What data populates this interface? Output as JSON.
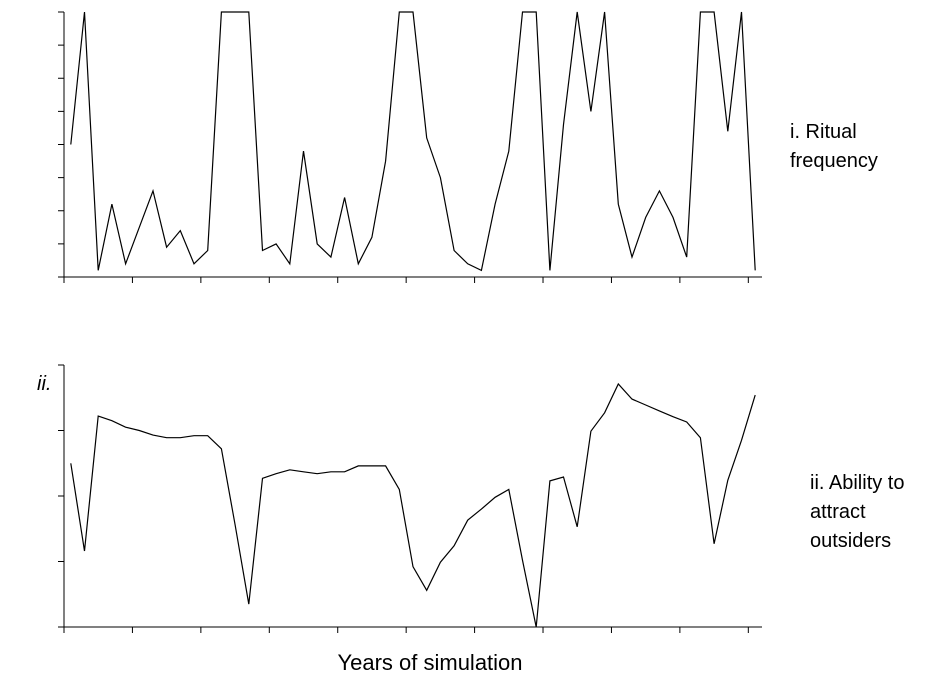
{
  "chart_data": [
    {
      "type": "line",
      "title": "i. Ritual frequency",
      "xlim": [
        0,
        51
      ],
      "xticks": [
        0,
        5,
        10,
        15,
        20,
        25,
        30,
        35,
        40,
        45,
        50
      ],
      "ylim": [
        0,
        8
      ],
      "yticks": [
        0,
        1,
        2,
        3,
        4,
        5,
        6,
        7,
        8
      ],
      "x": [
        0.5,
        1.5,
        2.5,
        3.5,
        4.5,
        5.5,
        6.5,
        7.5,
        8.5,
        9.5,
        10.5,
        11.5,
        12.5,
        13.5,
        14.5,
        15.5,
        16.5,
        17.5,
        18.5,
        19.5,
        20.5,
        21.5,
        22.5,
        23.5,
        24.5,
        25.5,
        26.5,
        27.5,
        28.5,
        29.5,
        30.5,
        31.5,
        32.5,
        33.5,
        34.5,
        35.5,
        36.5,
        37.5,
        38.5,
        39.5,
        40.5,
        41.5,
        42.5,
        43.5,
        44.5,
        45.5,
        46.5,
        47.5,
        48.5,
        49.5,
        50.5
      ],
      "series": [
        {
          "color": "#000000",
          "values": [
            4.0,
            8.0,
            0.2,
            2.2,
            0.4,
            1.5,
            2.6,
            0.9,
            1.4,
            0.4,
            0.8,
            8.0,
            8.0,
            8.0,
            0.8,
            1.0,
            0.4,
            3.8,
            1.0,
            0.6,
            2.4,
            0.4,
            1.2,
            3.5,
            8.0,
            8.0,
            4.2,
            3.0,
            0.8,
            0.4,
            0.2,
            2.2,
            3.8,
            8.0,
            8.0,
            0.2,
            4.6,
            8.0,
            5.0,
            8.0,
            2.2,
            0.6,
            1.8,
            2.6,
            1.8,
            0.6,
            8.0,
            8.0,
            4.4,
            8.0,
            0.2
          ]
        }
      ]
    },
    {
      "type": "line",
      "title": "ii. Ability to attract outsiders",
      "annotation": "ii.",
      "x_label": "Years of simulation",
      "xlim": [
        0,
        51
      ],
      "xticks": [
        0,
        5,
        10,
        15,
        20,
        25,
        30,
        35,
        40,
        45,
        50
      ],
      "ylim": [
        0,
        4
      ],
      "yticks": [
        0,
        1,
        2,
        3,
        4
      ],
      "x": [
        0.5,
        1.5,
        2.5,
        3.5,
        4.5,
        5.5,
        6.5,
        7.5,
        8.5,
        9.5,
        10.5,
        11.5,
        12.5,
        13.5,
        14.5,
        15.5,
        16.5,
        17.5,
        18.5,
        19.5,
        20.5,
        21.5,
        22.5,
        23.5,
        24.5,
        25.5,
        26.5,
        27.5,
        28.5,
        29.5,
        30.5,
        31.5,
        32.5,
        33.5,
        34.5,
        35.5,
        36.5,
        37.5,
        38.5,
        39.5,
        40.5,
        41.5,
        42.5,
        43.5,
        44.5,
        45.5,
        46.5,
        47.5,
        48.5,
        49.5,
        50.5
      ],
      "series": [
        {
          "color": "#000000",
          "values": [
            2.5,
            1.16,
            3.22,
            3.15,
            3.05,
            3.0,
            2.93,
            2.89,
            2.89,
            2.92,
            2.92,
            2.72,
            1.56,
            0.35,
            2.27,
            2.34,
            2.4,
            2.37,
            2.34,
            2.37,
            2.37,
            2.46,
            2.46,
            2.46,
            2.1,
            0.92,
            0.56,
            0.99,
            1.24,
            1.63,
            1.8,
            1.98,
            2.1,
            1.02,
            0.0,
            2.23,
            2.29,
            1.53,
            2.99,
            3.27,
            3.71,
            3.48,
            3.39,
            3.3,
            3.21,
            3.13,
            2.89,
            1.27,
            2.24,
            2.85,
            3.54
          ]
        }
      ]
    }
  ]
}
